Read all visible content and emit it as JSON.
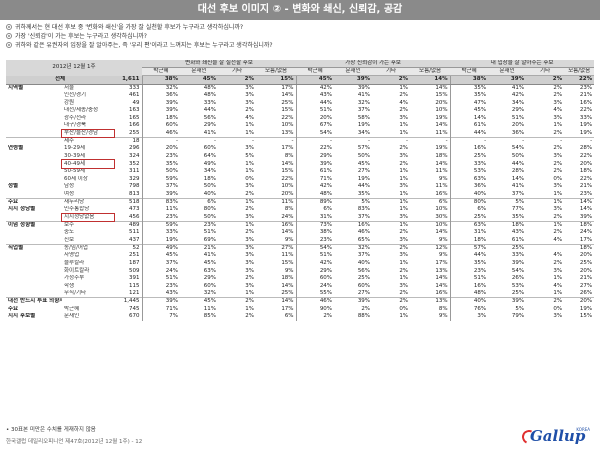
{
  "title": "대선 후보 이미지 ② - 변화와 쇄신, 신뢰감, 공감",
  "questions": [
    "귀하께서는 현 대선 후보 중 '변화와 쇄신'을 가장 잘 실천할 후보가 누구라고 생각하십니까?",
    "가장 '신뢰감'이 가는 후보는 누구라고 생각하십니까?",
    "귀하와 같은 유권자의 입장을 잘 알아주는, 즉 '우리 편'이라고 느껴지는 후보는 누구라고 생각하십니까?"
  ],
  "table": {
    "period": "2012년 12월 1주",
    "sample_label": "표본수",
    "groups": [
      "변화와 쇄신을 잘 실천할 후보",
      "가장 신뢰감이 가는 후보",
      "내 입장을 잘 알아주는 후보"
    ],
    "subcols": [
      "박근혜",
      "문재인",
      "기타",
      "모름/없음"
    ],
    "total": {
      "label": "전체",
      "n": "1,611",
      "vals": [
        "38%",
        "45%",
        "2%",
        "15%",
        "45%",
        "39%",
        "2%",
        "14%",
        "38%",
        "39%",
        "2%",
        "22%"
      ]
    },
    "rows": [
      {
        "g": "지역별",
        "s": "서울",
        "n": "333",
        "v": [
          "32%",
          "48%",
          "3%",
          "17%",
          "42%",
          "39%",
          "1%",
          "14%",
          "35%",
          "41%",
          "2%",
          "23%"
        ]
      },
      {
        "g": "",
        "s": "인천/경기",
        "n": "461",
        "v": [
          "36%",
          "48%",
          "3%",
          "14%",
          "43%",
          "41%",
          "2%",
          "15%",
          "35%",
          "42%",
          "2%",
          "21%"
        ]
      },
      {
        "g": "",
        "s": "강원",
        "n": "49",
        "v": [
          "39%",
          "33%",
          "3%",
          "25%",
          "44%",
          "32%",
          "4%",
          "20%",
          "47%",
          "34%",
          "3%",
          "16%"
        ]
      },
      {
        "g": "",
        "s": "대전/세종/충청",
        "n": "163",
        "v": [
          "39%",
          "44%",
          "2%",
          "15%",
          "51%",
          "37%",
          "2%",
          "10%",
          "45%",
          "29%",
          "4%",
          "22%"
        ]
      },
      {
        "g": "",
        "s": "광주/전라",
        "n": "165",
        "v": [
          "18%",
          "56%",
          "4%",
          "22%",
          "20%",
          "58%",
          "3%",
          "19%",
          "14%",
          "51%",
          "3%",
          "33%"
        ]
      },
      {
        "g": "",
        "s": "대구/경북",
        "n": "166",
        "v": [
          "60%",
          "29%",
          "1%",
          "10%",
          "67%",
          "19%",
          "1%",
          "14%",
          "61%",
          "20%",
          "1%",
          "19%"
        ]
      },
      {
        "g": "",
        "s": "부산/울산/경남",
        "n": "255",
        "v": [
          "46%",
          "41%",
          "1%",
          "13%",
          "54%",
          "34%",
          "1%",
          "11%",
          "44%",
          "36%",
          "2%",
          "19%"
        ],
        "hi": true
      },
      {
        "g": "",
        "s": "제주",
        "n": "18",
        "v": [
          "-",
          "-",
          "-",
          "-",
          "-",
          "-",
          "-",
          "-",
          "-",
          "-",
          "-",
          "-"
        ],
        "div": true
      },
      {
        "g": "연령별",
        "s": "19-29세",
        "n": "296",
        "v": [
          "20%",
          "60%",
          "3%",
          "17%",
          "22%",
          "57%",
          "2%",
          "19%",
          "16%",
          "54%",
          "2%",
          "28%"
        ]
      },
      {
        "g": "",
        "s": "30-39세",
        "n": "324",
        "v": [
          "23%",
          "64%",
          "5%",
          "8%",
          "29%",
          "50%",
          "3%",
          "18%",
          "25%",
          "50%",
          "3%",
          "22%"
        ]
      },
      {
        "g": "",
        "s": "40-49세",
        "n": "352",
        "v": [
          "35%",
          "49%",
          "1%",
          "14%",
          "39%",
          "45%",
          "2%",
          "14%",
          "33%",
          "44%",
          "2%",
          "20%"
        ],
        "hi": true
      },
      {
        "g": "",
        "s": "50-59세",
        "n": "311",
        "v": [
          "50%",
          "34%",
          "1%",
          "15%",
          "61%",
          "27%",
          "1%",
          "11%",
          "53%",
          "28%",
          "2%",
          "18%"
        ]
      },
      {
        "g": "",
        "s": "60세 이상",
        "n": "329",
        "v": [
          "59%",
          "18%",
          "0%",
          "22%",
          "71%",
          "19%",
          "1%",
          "9%",
          "63%",
          "14%",
          "0%",
          "22%"
        ]
      },
      {
        "g": "성별",
        "s": "남성",
        "n": "798",
        "v": [
          "37%",
          "50%",
          "3%",
          "10%",
          "42%",
          "44%",
          "3%",
          "11%",
          "36%",
          "41%",
          "3%",
          "21%"
        ]
      },
      {
        "g": "",
        "s": "여성",
        "n": "813",
        "v": [
          "39%",
          "40%",
          "2%",
          "20%",
          "48%",
          "35%",
          "1%",
          "16%",
          "40%",
          "37%",
          "1%",
          "23%"
        ]
      },
      {
        "g": "주요",
        "s": "새누리당",
        "n": "518",
        "v": [
          "83%",
          "6%",
          "1%",
          "11%",
          "89%",
          "5%",
          "1%",
          "6%",
          "80%",
          "5%",
          "1%",
          "14%"
        ],
        "div": true
      },
      {
        "g": "지지 정당별",
        "s": "민주통합당",
        "n": "473",
        "v": [
          "11%",
          "80%",
          "2%",
          "8%",
          "6%",
          "83%",
          "1%",
          "10%",
          "6%",
          "77%",
          "3%",
          "14%"
        ]
      },
      {
        "g": "",
        "s": "지지정당없음",
        "n": "456",
        "v": [
          "23%",
          "50%",
          "3%",
          "24%",
          "31%",
          "37%",
          "3%",
          "30%",
          "25%",
          "35%",
          "2%",
          "39%"
        ],
        "hi": true
      },
      {
        "g": "이념 성향별",
        "s": "보수",
        "n": "489",
        "v": [
          "59%",
          "23%",
          "1%",
          "16%",
          "73%",
          "16%",
          "1%",
          "10%",
          "63%",
          "18%",
          "1%",
          "18%"
        ],
        "div": true
      },
      {
        "g": "",
        "s": "중도",
        "n": "511",
        "v": [
          "33%",
          "51%",
          "2%",
          "14%",
          "38%",
          "46%",
          "2%",
          "14%",
          "31%",
          "43%",
          "2%",
          "24%"
        ]
      },
      {
        "g": "",
        "s": "진보",
        "n": "437",
        "v": [
          "19%",
          "69%",
          "3%",
          "9%",
          "23%",
          "65%",
          "3%",
          "9%",
          "18%",
          "61%",
          "4%",
          "17%"
        ]
      },
      {
        "g": "직업별",
        "s": "농/임/어업",
        "n": "52",
        "v": [
          "49%",
          "21%",
          "3%",
          "27%",
          "54%",
          "32%",
          "2%",
          "12%",
          "57%",
          "25%",
          "",
          "18%"
        ],
        "div": true
      },
      {
        "g": "",
        "s": "자영업",
        "n": "251",
        "v": [
          "45%",
          "41%",
          "3%",
          "11%",
          "51%",
          "37%",
          "3%",
          "9%",
          "44%",
          "33%",
          "4%",
          "20%"
        ]
      },
      {
        "g": "",
        "s": "블루칼라",
        "n": "187",
        "v": [
          "37%",
          "45%",
          "3%",
          "15%",
          "42%",
          "40%",
          "1%",
          "17%",
          "35%",
          "39%",
          "2%",
          "25%"
        ]
      },
      {
        "g": "",
        "s": "화이트칼라",
        "n": "509",
        "v": [
          "24%",
          "63%",
          "3%",
          "9%",
          "29%",
          "56%",
          "2%",
          "13%",
          "23%",
          "54%",
          "3%",
          "20%"
        ]
      },
      {
        "g": "",
        "s": "가정주부",
        "n": "391",
        "v": [
          "51%",
          "29%",
          "2%",
          "18%",
          "60%",
          "25%",
          "1%",
          "14%",
          "51%",
          "26%",
          "1%",
          "21%"
        ]
      },
      {
        "g": "",
        "s": "학생",
        "n": "115",
        "v": [
          "23%",
          "60%",
          "3%",
          "14%",
          "24%",
          "60%",
          "3%",
          "14%",
          "16%",
          "53%",
          "4%",
          "27%"
        ]
      },
      {
        "g": "",
        "s": "무직/기타",
        "n": "121",
        "v": [
          "43%",
          "32%",
          "1%",
          "25%",
          "55%",
          "27%",
          "2%",
          "16%",
          "48%",
          "25%",
          "1%",
          "26%"
        ]
      },
      {
        "g": "대선 반드시 투표 의향자",
        "s": "",
        "n": "1,445",
        "v": [
          "39%",
          "45%",
          "2%",
          "14%",
          "46%",
          "39%",
          "2%",
          "13%",
          "40%",
          "39%",
          "2%",
          "20%"
        ],
        "div": true
      },
      {
        "g": "주요",
        "s": "박근혜",
        "n": "745",
        "v": [
          "71%",
          "11%",
          "1%",
          "17%",
          "90%",
          "2%",
          "0%",
          "8%",
          "76%",
          "5%",
          "0%",
          "19%"
        ]
      },
      {
        "g": "지지 후보별",
        "s": "문재인",
        "n": "670",
        "v": [
          "7%",
          "85%",
          "2%",
          "6%",
          "2%",
          "88%",
          "1%",
          "9%",
          "3%",
          "79%",
          "3%",
          "15%"
        ]
      }
    ]
  },
  "footnote": "• 30표본 미만은 수치를 게재하지 않음",
  "source": "한국갤럽 데일리오피니언 제47호(2012년 12월 1주) - 12",
  "logo": {
    "name": "Gallup",
    "sub": "KOREA",
    "color": "#1f4fa8",
    "accent": "#e03030"
  }
}
